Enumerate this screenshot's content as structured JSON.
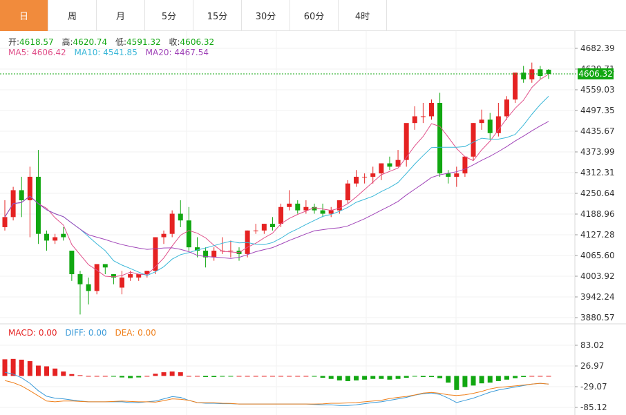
{
  "tabs": [
    {
      "label": "日",
      "active": true
    },
    {
      "label": "周",
      "active": false
    },
    {
      "label": "月",
      "active": false
    },
    {
      "label": "5分",
      "active": false
    },
    {
      "label": "15分",
      "active": false
    },
    {
      "label": "30分",
      "active": false
    },
    {
      "label": "60分",
      "active": false
    },
    {
      "label": "4时",
      "active": false
    }
  ],
  "ohlc": {
    "open_label": "开:",
    "open": "4618.57",
    "high_label": "高:",
    "high": "4620.74",
    "low_label": "低:",
    "low": "4591.32",
    "close_label": "收:",
    "close": "4606.32"
  },
  "ma": {
    "ma5": "MA5: 4606.42",
    "ma10": "MA10: 4541.85",
    "ma20": "MA20: 4467.54"
  },
  "macd_legend": {
    "macd": "MACD: 0.00",
    "diff": "DIFF: 0.00",
    "dea": "DEA: 0.00"
  },
  "current_price": "4606.32",
  "colors": {
    "up": "#e52222",
    "down": "#11a711",
    "ma5": "#e0508a",
    "ma10": "#3ab7d8",
    "ma20": "#a044b8",
    "diff": "#3a9ad8",
    "dea": "#ef7f1a",
    "tab_active": "#f18b3c"
  },
  "chart_data": {
    "type": "candlestick",
    "price_axis_ticks": [
      "4682.39",
      "4620.71",
      "4559.03",
      "4497.35",
      "4435.67",
      "4373.99",
      "4312.31",
      "4250.64",
      "4188.96",
      "4127.28",
      "4065.60",
      "4003.92",
      "3942.24",
      "3880.57"
    ],
    "price_ylim": [
      3880.57,
      4682.39
    ],
    "macd_axis_ticks": [
      "83.02",
      "26.97",
      "-29.07",
      "-85.12"
    ],
    "macd_ylim": [
      -85.12,
      83.02
    ],
    "candles": [
      [
        4150,
        4230,
        4180,
        4140
      ],
      [
        4180,
        4270,
        4260,
        4170
      ],
      [
        4260,
        4300,
        4230,
        4180
      ],
      [
        4230,
        4330,
        4300,
        4120
      ],
      [
        4300,
        4380,
        4130,
        4100
      ],
      [
        4130,
        4140,
        4110,
        4080
      ],
      [
        4110,
        4130,
        4120,
        4100
      ],
      [
        4130,
        4150,
        4120,
        4110
      ],
      [
        4080,
        4080,
        4010,
        3990
      ],
      [
        4010,
        4020,
        3980,
        3890
      ],
      [
        3980,
        4000,
        3960,
        3920
      ],
      [
        3960,
        4030,
        4040,
        3950
      ],
      [
        4040,
        4040,
        4030,
        4010
      ],
      [
        4010,
        4010,
        4000,
        3980
      ],
      [
        3970,
        4020,
        4000,
        3950
      ],
      [
        4000,
        4020,
        4010,
        3990
      ],
      [
        4000,
        4000,
        4010,
        3990
      ],
      [
        4010,
        4020,
        4020,
        4000
      ],
      [
        4020,
        4120,
        4120,
        4010
      ],
      [
        4120,
        4140,
        4130,
        4100
      ],
      [
        4130,
        4200,
        4190,
        4120
      ],
      [
        4190,
        4230,
        4170,
        4150
      ],
      [
        4170,
        4210,
        4090,
        4080
      ],
      [
        4090,
        4120,
        4080,
        4060
      ],
      [
        4080,
        4090,
        4060,
        4030
      ],
      [
        4060,
        4090,
        4080,
        4050
      ],
      [
        4080,
        4120,
        4080,
        4070
      ],
      [
        4080,
        4110,
        4080,
        4060
      ],
      [
        4080,
        4090,
        4070,
        4050
      ],
      [
        4070,
        4140,
        4140,
        4060
      ],
      [
        4140,
        4160,
        4140,
        4130
      ],
      [
        4140,
        4160,
        4160,
        4130
      ],
      [
        4160,
        4180,
        4150,
        4140
      ],
      [
        4160,
        4220,
        4210,
        4150
      ],
      [
        4210,
        4260,
        4220,
        4200
      ],
      [
        4220,
        4230,
        4200,
        4190
      ],
      [
        4200,
        4230,
        4210,
        4190
      ],
      [
        4210,
        4220,
        4200,
        4190
      ],
      [
        4200,
        4220,
        4190,
        4180
      ],
      [
        4190,
        4210,
        4200,
        4180
      ],
      [
        4200,
        4230,
        4230,
        4190
      ],
      [
        4230,
        4290,
        4280,
        4220
      ],
      [
        4280,
        4320,
        4300,
        4270
      ],
      [
        4300,
        4310,
        4300,
        4280
      ],
      [
        4300,
        4330,
        4310,
        4280
      ],
      [
        4310,
        4340,
        4340,
        4290
      ],
      [
        4340,
        4360,
        4330,
        4320
      ],
      [
        4330,
        4380,
        4350,
        4330
      ],
      [
        4350,
        4400,
        4460,
        4330
      ],
      [
        4460,
        4510,
        4480,
        4440
      ],
      [
        4480,
        4520,
        4480,
        4460
      ],
      [
        4480,
        4530,
        4520,
        4470
      ],
      [
        4520,
        4550,
        4310,
        4300
      ],
      [
        4310,
        4320,
        4300,
        4280
      ],
      [
        4300,
        4330,
        4310,
        4270
      ],
      [
        4310,
        4360,
        4360,
        4300
      ],
      [
        4360,
        4460,
        4460,
        4350
      ],
      [
        4460,
        4500,
        4470,
        4440
      ],
      [
        4470,
        4490,
        4430,
        4410
      ],
      [
        4430,
        4520,
        4480,
        4420
      ],
      [
        4480,
        4540,
        4530,
        4470
      ],
      [
        4530,
        4580,
        4610,
        4520
      ],
      [
        4610,
        4630,
        4590,
        4580
      ],
      [
        4590,
        4640,
        4620,
        4580
      ],
      [
        4620,
        4630,
        4600,
        4590
      ],
      [
        4618.57,
        4620.74,
        4606.32,
        4591.32
      ]
    ],
    "macd_hist": [
      45,
      46,
      44,
      40,
      28,
      26,
      20,
      12,
      5,
      2,
      0,
      0,
      0,
      -2,
      -4,
      -6,
      -4,
      0,
      6,
      10,
      12,
      10,
      0,
      0,
      -3,
      -3,
      -2,
      -1,
      0,
      0,
      0,
      0,
      0,
      0,
      0,
      0,
      0,
      -2,
      -5,
      -8,
      -12,
      -14,
      -12,
      -10,
      -8,
      -8,
      -10,
      -8,
      -5,
      -1,
      -3,
      -3,
      -6,
      -18,
      -38,
      -30,
      -26,
      -20,
      -18,
      -14,
      -10,
      -6,
      -3,
      0,
      0,
      0
    ]
  }
}
